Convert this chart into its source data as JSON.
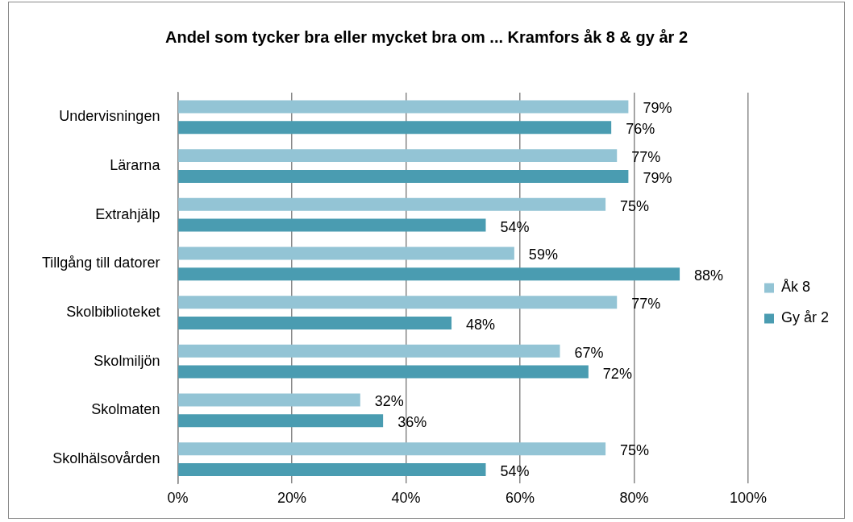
{
  "chart_data": {
    "type": "bar",
    "orientation": "horizontal",
    "title": "Andel som tycker bra eller mycket bra om ... Kramfors åk 8 & gy år 2",
    "categories": [
      "Undervisningen",
      "Lärarna",
      "Extrahjälp",
      "Tillgång till datorer",
      "Skolbiblioteket",
      "Skolmiljön",
      "Skolmaten",
      "Skolhälsovården"
    ],
    "series": [
      {
        "name": "Åk 8",
        "color": "#93c4d5",
        "values": [
          79,
          77,
          75,
          59,
          77,
          67,
          32,
          75
        ],
        "value_labels": [
          "79%",
          "77%",
          "75%",
          "59%",
          "77%",
          "67%",
          "32%",
          "75%"
        ]
      },
      {
        "name": "Gy år 2",
        "color": "#4a9cb1",
        "values": [
          76,
          79,
          54,
          88,
          48,
          72,
          36,
          54
        ],
        "value_labels": [
          "76%",
          "79%",
          "54%",
          "88%",
          "48%",
          "72%",
          "36%",
          "54%"
        ]
      }
    ],
    "xlim": [
      0,
      100
    ],
    "xticks": [
      {
        "value": 0,
        "label": "0%"
      },
      {
        "value": 20,
        "label": "20%"
      },
      {
        "value": 40,
        "label": "40%"
      },
      {
        "value": 60,
        "label": "60%"
      },
      {
        "value": 80,
        "label": "80%"
      },
      {
        "value": 100,
        "label": "100%"
      }
    ],
    "grid": "x",
    "legend": "right"
  }
}
